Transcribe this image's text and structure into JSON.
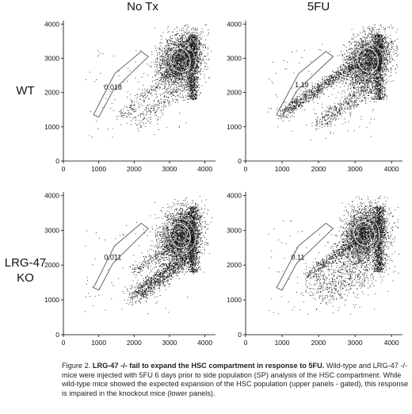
{
  "figure": {
    "column_titles": [
      "No Tx",
      "5FU"
    ],
    "row_labels": [
      "WT",
      "LRG-47\nKO"
    ],
    "caption": {
      "label": "Figure 2.",
      "bold": "LRG-47 -/- fail to expand the HSC compartment in response to 5FU.",
      "text": "Wild-type and LRG-47 -/- mice were injected with 5FU 6 days prior to side population (SP) analysis of the HSC compartment.  While wild-type mice showed the expected expansion of the HSC population (upper panels - gated), this response is impaired in the knockout mice (lower panels)."
    },
    "colors": {
      "dots": "#111111",
      "gate": "#666666",
      "background": "#ffffff"
    }
  },
  "chart_data": [
    {
      "type": "scatter",
      "row": "WT",
      "column": "No Tx",
      "xlim": [
        0,
        4300
      ],
      "ylim": [
        0,
        4100
      ],
      "xticks": [
        0,
        1000,
        2000,
        3000,
        4000
      ],
      "yticks": [
        0,
        1000,
        2000,
        3000,
        4000
      ],
      "xlabel": "",
      "ylabel": "",
      "gate_value": "0.018",
      "gate_value_position": [
        1150,
        2080
      ],
      "gate_polygon": [
        [
          850,
          1350
        ],
        [
          1000,
          1280
        ],
        [
          1400,
          2050
        ],
        [
          2400,
          3050
        ],
        [
          2200,
          3200
        ],
        [
          1450,
          2550
        ]
      ],
      "population_center": [
        3300,
        2950
      ],
      "stream": {
        "from": [
          1600,
          1300
        ],
        "to": [
          3100,
          2650
        ],
        "density": "low"
      },
      "lower_arm": "faint"
    },
    {
      "type": "scatter",
      "row": "WT",
      "column": "5FU",
      "xlim": [
        0,
        4300
      ],
      "ylim": [
        0,
        4100
      ],
      "xticks": [
        0,
        1000,
        2000,
        3000,
        4000
      ],
      "yticks": [
        0,
        1000,
        2000,
        3000,
        4000
      ],
      "xlabel": "",
      "ylabel": "",
      "gate_value": "1.19",
      "gate_value_position": [
        1350,
        2150
      ],
      "gate_polygon": [
        [
          850,
          1350
        ],
        [
          1000,
          1280
        ],
        [
          1400,
          2050
        ],
        [
          2400,
          3050
        ],
        [
          2200,
          3200
        ],
        [
          1450,
          2550
        ]
      ],
      "population_center": [
        3350,
        2950
      ],
      "stream": {
        "from": [
          1000,
          1400
        ],
        "to": [
          3000,
          2850
        ],
        "density": "high"
      },
      "lower_arm": "moderate"
    },
    {
      "type": "scatter",
      "row": "LRG-47 KO",
      "column": "No Tx",
      "xlim": [
        0,
        4300
      ],
      "ylim": [
        0,
        4100
      ],
      "xticks": [
        0,
        1000,
        2000,
        3000,
        4000
      ],
      "yticks": [
        0,
        1000,
        2000,
        3000,
        4000
      ],
      "xlabel": "",
      "ylabel": "",
      "gate_value": "0.011",
      "gate_value_position": [
        1150,
        2150
      ],
      "gate_polygon": [
        [
          850,
          1350
        ],
        [
          1000,
          1280
        ],
        [
          1400,
          2050
        ],
        [
          2400,
          3050
        ],
        [
          2200,
          3200
        ],
        [
          1450,
          2550
        ]
      ],
      "population_center": [
        3300,
        2850
      ],
      "stream": {
        "from": [
          2000,
          1800
        ],
        "to": [
          3100,
          2650
        ],
        "density": "low"
      },
      "lower_arm": "strong"
    },
    {
      "type": "scatter",
      "row": "LRG-47 KO",
      "column": "5FU",
      "xlim": [
        0,
        4300
      ],
      "ylim": [
        0,
        4100
      ],
      "xticks": [
        0,
        1000,
        2000,
        3000,
        4000
      ],
      "yticks": [
        0,
        1000,
        2000,
        3000,
        4000
      ],
      "xlabel": "",
      "ylabel": "",
      "gate_value": "0.11",
      "gate_value_position": [
        1250,
        2150
      ],
      "gate_polygon": [
        [
          850,
          1350
        ],
        [
          1000,
          1280
        ],
        [
          1400,
          2050
        ],
        [
          2400,
          3050
        ],
        [
          2200,
          3200
        ],
        [
          1450,
          2550
        ]
      ],
      "population_center": [
        3250,
        2900
      ],
      "stream": {
        "from": [
          1700,
          1700
        ],
        "to": [
          3000,
          2700
        ],
        "density": "medium"
      },
      "lower_arm": "diffuse"
    }
  ]
}
